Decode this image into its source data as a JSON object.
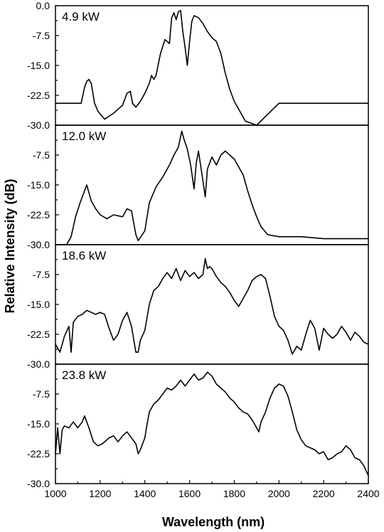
{
  "chart_data": {
    "type": "line",
    "xlabel": "Wavelength (nm)",
    "ylabel": "Relative Intensity (dB)",
    "xlim": [
      1000,
      2400
    ],
    "ylim": [
      -30,
      0
    ],
    "x_ticks": [
      "1000",
      "1200",
      "1400",
      "1600",
      "1800",
      "2000",
      "2200",
      "2400"
    ],
    "y_ticks": [
      "0.0",
      "-7.5",
      "-15.0",
      "-22.5",
      "-30.0"
    ],
    "grid": false,
    "legend": "none",
    "panels": [
      {
        "label": "4.9 kW",
        "x": [
          1000,
          1050,
          1100,
          1115,
          1130,
          1140,
          1150,
          1160,
          1175,
          1190,
          1220,
          1260,
          1300,
          1320,
          1335,
          1345,
          1360,
          1380,
          1400,
          1420,
          1430,
          1440,
          1450,
          1470,
          1490,
          1510,
          1520,
          1530,
          1540,
          1550,
          1560,
          1570,
          1580,
          1590,
          1600,
          1610,
          1620,
          1640,
          1660,
          1680,
          1700,
          1720,
          1740,
          1760,
          1780,
          1800,
          1850,
          1900,
          2000,
          2100,
          2200,
          2300,
          2400
        ],
        "y": [
          -24.5,
          -24.5,
          -24.5,
          -24.5,
          -20.5,
          -19.0,
          -18.5,
          -19.5,
          -24.5,
          -26.5,
          -28.5,
          -27.0,
          -25.0,
          -22.0,
          -21.5,
          -24.5,
          -25.5,
          -24.0,
          -22.0,
          -19.5,
          -17.5,
          -18.5,
          -17.5,
          -12.0,
          -8.5,
          -9.5,
          -3.0,
          -1.8,
          -3.5,
          -1.5,
          -1.2,
          -6.5,
          -10.5,
          -15.0,
          -9.0,
          -4.0,
          -2.5,
          -3.0,
          -4.5,
          -6.5,
          -8.0,
          -9.0,
          -12.0,
          -17.0,
          -21.0,
          -24.0,
          -29.0,
          -30.0,
          -24.5,
          -24.5,
          -24.5,
          -24.5,
          -24.5
        ]
      },
      {
        "label": "12.0 kW",
        "x": [
          1000,
          1050,
          1070,
          1090,
          1110,
          1130,
          1140,
          1160,
          1180,
          1200,
          1230,
          1260,
          1300,
          1320,
          1340,
          1360,
          1370,
          1400,
          1420,
          1450,
          1480,
          1510,
          1530,
          1550,
          1565,
          1575,
          1590,
          1605,
          1620,
          1630,
          1640,
          1660,
          1670,
          1680,
          1700,
          1720,
          1740,
          1760,
          1780,
          1800,
          1820,
          1840,
          1860,
          1880,
          1900,
          1920,
          1950,
          2000,
          2100,
          2200,
          2300,
          2400
        ],
        "y": [
          -30.0,
          -30.0,
          -28.0,
          -23.0,
          -19.5,
          -16.5,
          -15.0,
          -19.0,
          -21.0,
          -22.5,
          -23.5,
          -22.5,
          -23.0,
          -21.0,
          -21.5,
          -27.5,
          -29.0,
          -26.5,
          -19.5,
          -15.5,
          -13.0,
          -10.0,
          -7.5,
          -5.5,
          -1.5,
          -3.5,
          -6.0,
          -10.0,
          -16.0,
          -9.5,
          -6.5,
          -14.0,
          -18.0,
          -11.0,
          -8.0,
          -10.0,
          -7.5,
          -6.5,
          -7.5,
          -8.5,
          -10.5,
          -12.5,
          -16.5,
          -20.0,
          -23.0,
          -25.5,
          -27.5,
          -28.0,
          -28.0,
          -28.5,
          -28.5,
          -28.5
        ]
      },
      {
        "label": "18.6 kW",
        "x": [
          1000,
          1020,
          1040,
          1060,
          1070,
          1080,
          1100,
          1120,
          1140,
          1160,
          1180,
          1200,
          1220,
          1240,
          1260,
          1280,
          1300,
          1320,
          1340,
          1360,
          1370,
          1380,
          1400,
          1420,
          1440,
          1460,
          1480,
          1500,
          1520,
          1540,
          1560,
          1580,
          1600,
          1620,
          1640,
          1660,
          1670,
          1680,
          1690,
          1700,
          1720,
          1740,
          1760,
          1780,
          1800,
          1820,
          1840,
          1860,
          1880,
          1900,
          1920,
          1940,
          1960,
          1980,
          2000,
          2020,
          2040,
          2060,
          2080,
          2100,
          2120,
          2140,
          2160,
          2180,
          2200,
          2220,
          2240,
          2260,
          2280,
          2300,
          2320,
          2340,
          2360,
          2380,
          2400
        ],
        "y": [
          -25.0,
          -27.0,
          -23.0,
          -20.5,
          -27.0,
          -19.5,
          -18.0,
          -17.5,
          -16.5,
          -17.0,
          -17.5,
          -17.0,
          -17.5,
          -21.0,
          -24.0,
          -22.5,
          -19.0,
          -17.0,
          -20.5,
          -27.0,
          -27.0,
          -24.0,
          -21.5,
          -15.0,
          -11.5,
          -10.5,
          -8.5,
          -7.0,
          -8.5,
          -6.0,
          -9.0,
          -6.5,
          -8.0,
          -7.0,
          -8.5,
          -7.5,
          -3.5,
          -6.0,
          -5.5,
          -6.0,
          -8.0,
          -9.5,
          -10.5,
          -12.0,
          -14.0,
          -15.5,
          -13.5,
          -11.5,
          -9.0,
          -8.0,
          -7.5,
          -8.5,
          -13.0,
          -18.0,
          -20.5,
          -21.5,
          -24.0,
          -27.5,
          -25.5,
          -26.5,
          -22.5,
          -19.0,
          -21.0,
          -26.5,
          -21.0,
          -22.5,
          -23.5,
          -22.5,
          -20.5,
          -22.0,
          -24.0,
          -22.0,
          -23.0,
          -24.5,
          -25.0
        ]
      },
      {
        "label": "23.8 kW",
        "x": [
          1000,
          1010,
          1020,
          1030,
          1040,
          1060,
          1080,
          1100,
          1120,
          1130,
          1150,
          1170,
          1190,
          1210,
          1240,
          1260,
          1280,
          1300,
          1320,
          1340,
          1360,
          1370,
          1380,
          1400,
          1410,
          1420,
          1440,
          1460,
          1480,
          1500,
          1520,
          1540,
          1560,
          1580,
          1600,
          1620,
          1640,
          1660,
          1680,
          1700,
          1720,
          1740,
          1760,
          1780,
          1800,
          1820,
          1840,
          1860,
          1880,
          1900,
          1910,
          1920,
          1940,
          1960,
          1980,
          2000,
          2020,
          2040,
          2060,
          2080,
          2100,
          2120,
          2140,
          2160,
          2180,
          2200,
          2220,
          2240,
          2260,
          2280,
          2300,
          2320,
          2340,
          2360,
          2380,
          2400
        ],
        "y": [
          -22.5,
          -16.0,
          -22.5,
          -16.5,
          -15.5,
          -16.0,
          -14.5,
          -16.0,
          -14.5,
          -13.0,
          -16.0,
          -19.5,
          -20.5,
          -20.0,
          -18.5,
          -18.0,
          -19.5,
          -18.0,
          -17.0,
          -18.5,
          -20.0,
          -22.5,
          -21.5,
          -18.5,
          -15.0,
          -12.0,
          -10.0,
          -9.0,
          -7.5,
          -6.0,
          -6.5,
          -5.5,
          -4.0,
          -5.5,
          -4.0,
          -2.5,
          -4.0,
          -3.5,
          -2.0,
          -3.0,
          -5.0,
          -6.0,
          -7.0,
          -8.5,
          -9.5,
          -11.0,
          -12.0,
          -12.5,
          -14.0,
          -16.0,
          -17.0,
          -14.5,
          -12.0,
          -8.5,
          -6.0,
          -5.0,
          -5.5,
          -8.0,
          -12.0,
          -16.5,
          -19.0,
          -20.5,
          -21.0,
          -21.5,
          -22.5,
          -22.0,
          -24.0,
          -23.5,
          -22.5,
          -22.0,
          -20.5,
          -21.5,
          -23.5,
          -24.0,
          -25.5,
          -28.0
        ]
      }
    ]
  }
}
